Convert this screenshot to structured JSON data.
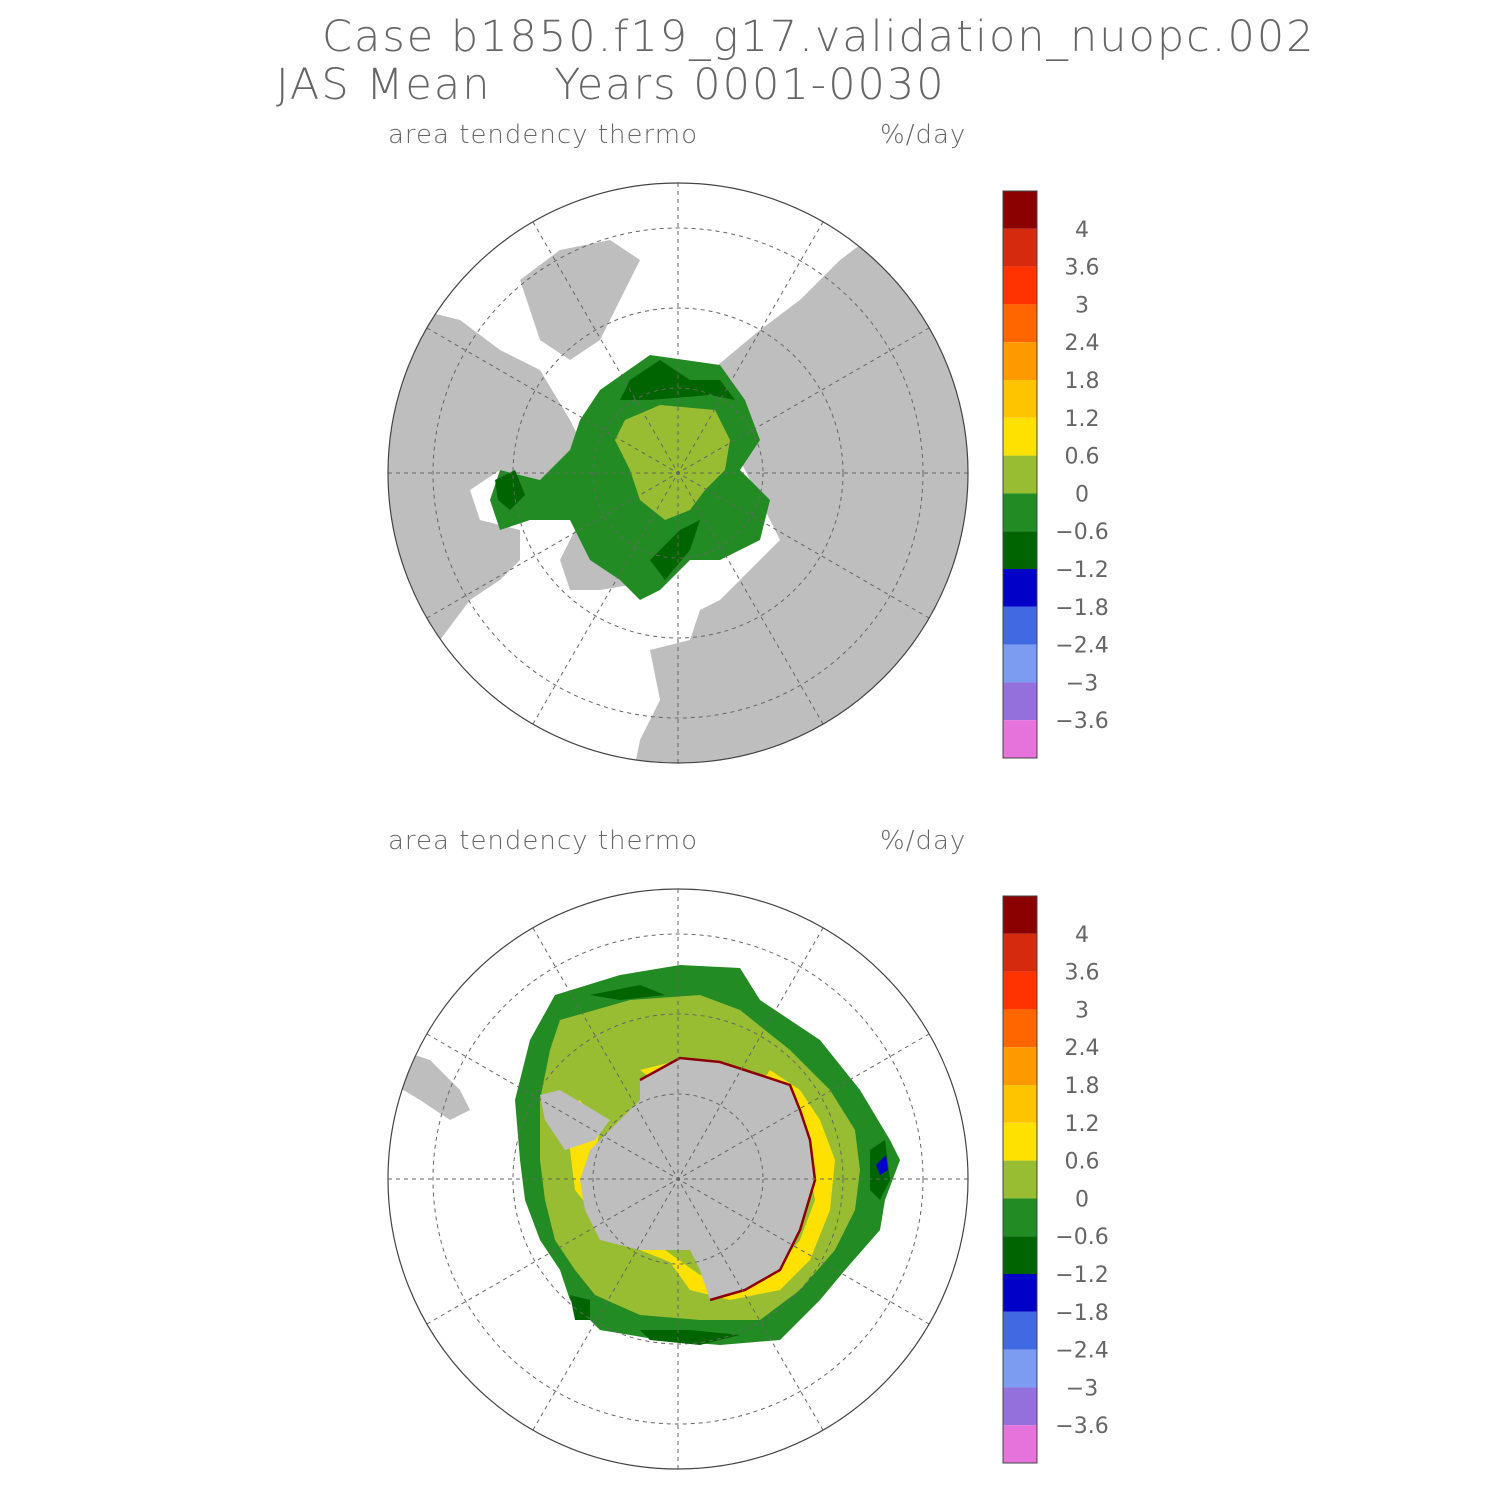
{
  "title": {
    "line1": "Case b1850.f19_g17.validation_nuopc.002",
    "line2": "JAS Mean    Years 0001-0030"
  },
  "panels": [
    {
      "id": "north",
      "variable": "area tendency thermo",
      "units": "%/day"
    },
    {
      "id": "south",
      "variable": "area tendency thermo",
      "units": "%/day"
    }
  ],
  "colorbar": {
    "colors": [
      "#8b0000",
      "#d62a0f",
      "#ff3300",
      "#ff6600",
      "#ff9900",
      "#ffc400",
      "#ffe100",
      "#98bd32",
      "#238b23",
      "#006400",
      "#0000c8",
      "#4169e1",
      "#7b9cf0",
      "#9370db",
      "#e673dc"
    ],
    "labels": [
      "4",
      "3.6",
      "3",
      "2.4",
      "1.8",
      "1.2",
      "0.6",
      "0",
      "−0.6",
      "−1.2",
      "−1.8",
      "−2.4",
      "−3",
      "−3.6"
    ]
  }
}
